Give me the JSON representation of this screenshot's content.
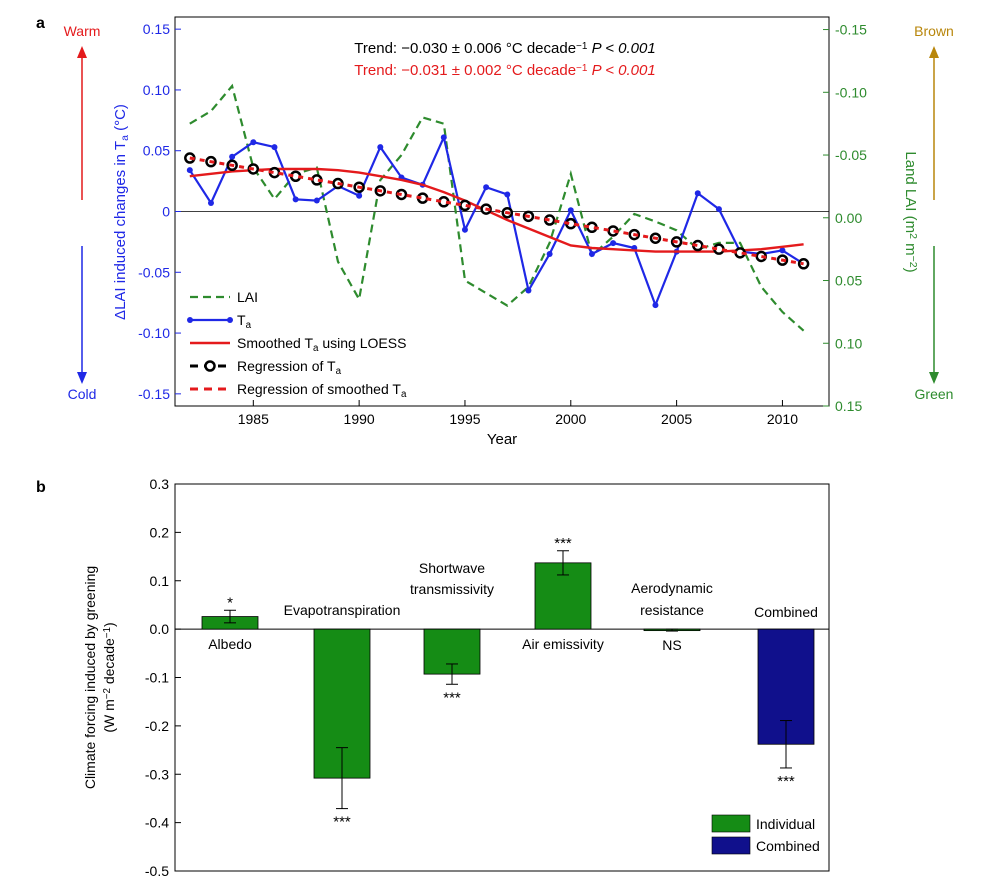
{
  "chart_data": [
    {
      "panel": "a",
      "type": "line",
      "xlabel": "Year",
      "ylabel_left": "ΔLAI induced changes in Tₐ (°C)",
      "ylabel_right": "Land LAI (m² m⁻²)",
      "xlim": [
        1981.3,
        2012.2
      ],
      "ylim_left": [
        -0.16,
        0.16
      ],
      "ylim_right_inverted": [
        0.15,
        -0.16
      ],
      "xticks": [
        1985,
        1990,
        1995,
        2000,
        2005,
        2010
      ],
      "yticks_left": [
        "0.15",
        "0.10",
        "0.05",
        "0",
        "-0.05",
        "-0.10",
        "-0.15"
      ],
      "yticks_right": [
        "-0.15",
        "-0.10",
        "-0.05",
        "0.00",
        "0.05",
        "0.10",
        "0.15"
      ],
      "trend_texts": [
        {
          "prefix": "Trend: −0.030 ± 0.006 °C decade",
          "sup": "−1",
          "suffix": " P < 0.001",
          "color": "#000000"
        },
        {
          "prefix": "Trend: −0.031 ± 0.002 °C decade",
          "sup": "−1",
          "suffix": " P < 0.001",
          "color": "#e41a1c"
        }
      ],
      "side_labels": {
        "warm": "Warm",
        "cold": "Cold",
        "brown": "Brown",
        "green": "Green"
      },
      "colors": {
        "lai": "#2e8b2e",
        "ta": "#1f28e6",
        "smooth": "#e41a1c",
        "reg": "#000000",
        "warm": "#e41a1c",
        "cold": "#1f28e6",
        "brown": "#b8860b",
        "green": "#2e8b2e"
      },
      "years": [
        1982,
        1983,
        1984,
        1985,
        1986,
        1987,
        1988,
        1989,
        1990,
        1991,
        1992,
        1993,
        1994,
        1995,
        1996,
        1997,
        1998,
        1999,
        2000,
        2001,
        2002,
        2003,
        2004,
        2005,
        2006,
        2007,
        2008,
        2009,
        2010,
        2011
      ],
      "series": [
        {
          "name": "LAI",
          "axis": "right",
          "style": "dashed",
          "values": [
            -0.075,
            -0.085,
            -0.105,
            -0.04,
            -0.015,
            -0.035,
            -0.04,
            0.035,
            0.065,
            -0.03,
            -0.05,
            -0.08,
            -0.075,
            0.05,
            0.06,
            0.07,
            0.055,
            0.02,
            -0.035,
            0.03,
            0.015,
            -0.003,
            0.003,
            0.01,
            0.025,
            0.02,
            0.02,
            0.055,
            0.075,
            0.09
          ]
        },
        {
          "name": "Tₐ",
          "axis": "left",
          "style": "solid-dot",
          "values": [
            0.034,
            0.007,
            0.045,
            0.057,
            0.053,
            0.01,
            0.009,
            0.021,
            0.013,
            0.053,
            0.028,
            0.022,
            0.061,
            -0.015,
            0.02,
            0.014,
            -0.065,
            -0.035,
            0.001,
            -0.035,
            -0.026,
            -0.03,
            -0.077,
            -0.033,
            0.015,
            0.002,
            -0.033,
            -0.035,
            -0.032,
            -0.043
          ]
        },
        {
          "name": "Smoothed Tₐ using LOESS",
          "axis": "left",
          "style": "solid",
          "values": [
            0.029,
            0.031,
            0.033,
            0.034,
            0.035,
            0.035,
            0.035,
            0.034,
            0.032,
            0.029,
            0.026,
            0.022,
            0.016,
            0.009,
            0.001,
            -0.007,
            -0.014,
            -0.021,
            -0.028,
            -0.03,
            -0.031,
            -0.032,
            -0.033,
            -0.033,
            -0.033,
            -0.033,
            -0.032,
            -0.031,
            -0.029,
            -0.027
          ]
        },
        {
          "name": "Regression of Tₐ",
          "axis": "left",
          "style": "dashed-circle",
          "values": [
            0.044,
            0.041,
            0.038,
            0.035,
            0.032,
            0.029,
            0.026,
            0.023,
            0.02,
            0.017,
            0.014,
            0.011,
            0.008,
            0.005,
            0.002,
            -0.001,
            -0.004,
            -0.007,
            -0.01,
            -0.013,
            -0.016,
            -0.019,
            -0.022,
            -0.025,
            -0.028,
            -0.031,
            -0.034,
            -0.037,
            -0.04,
            -0.043
          ]
        },
        {
          "name": "Regression of smoothed Tₐ",
          "axis": "left",
          "style": "dashed",
          "values": [
            0.044,
            0.041,
            0.038,
            0.035,
            0.032,
            0.029,
            0.026,
            0.023,
            0.02,
            0.017,
            0.014,
            0.011,
            0.008,
            0.005,
            0.002,
            -0.001,
            -0.004,
            -0.007,
            -0.01,
            -0.013,
            -0.016,
            -0.019,
            -0.022,
            -0.025,
            -0.028,
            -0.031,
            -0.034,
            -0.037,
            -0.04,
            -0.043
          ]
        }
      ],
      "legend": [
        "LAI",
        "Tₐ",
        "Smoothed Tₐ using LOESS",
        "Regression of Tₐ",
        "Regression of smoothed Tₐ"
      ],
      "legend_position": "bottom-left"
    },
    {
      "panel": "b",
      "type": "bar",
      "ylabel": "Climate forcing induced by greening (W m⁻² decade⁻¹)",
      "ylim": [
        -0.5,
        0.3
      ],
      "yticks": [
        "0.3",
        "0.2",
        "0.1",
        "0.0",
        "-0.1",
        "-0.2",
        "-0.3",
        "-0.4",
        "-0.5"
      ],
      "categories": [
        "Albedo",
        "Evapotranspiration",
        "Shortwave transmissivity",
        "Air emissivity",
        "Aerodynamic resistance",
        "Combined"
      ],
      "values": [
        0.026,
        -0.308,
        -0.093,
        0.137,
        -0.002,
        -0.238
      ],
      "errors": [
        0.013,
        0.063,
        0.021,
        0.025,
        0.002,
        0.049
      ],
      "significance": [
        "*",
        "***",
        "***",
        "***",
        "NS",
        "***"
      ],
      "groups": [
        "Individual",
        "Individual",
        "Individual",
        "Individual",
        "Individual",
        "Combined"
      ],
      "legend": [
        {
          "name": "Individual",
          "color": "#158c15"
        },
        {
          "name": "Combined",
          "color": "#10108c"
        }
      ],
      "legend_position": "bottom-right"
    }
  ],
  "panel_labels": [
    "a",
    "b"
  ]
}
